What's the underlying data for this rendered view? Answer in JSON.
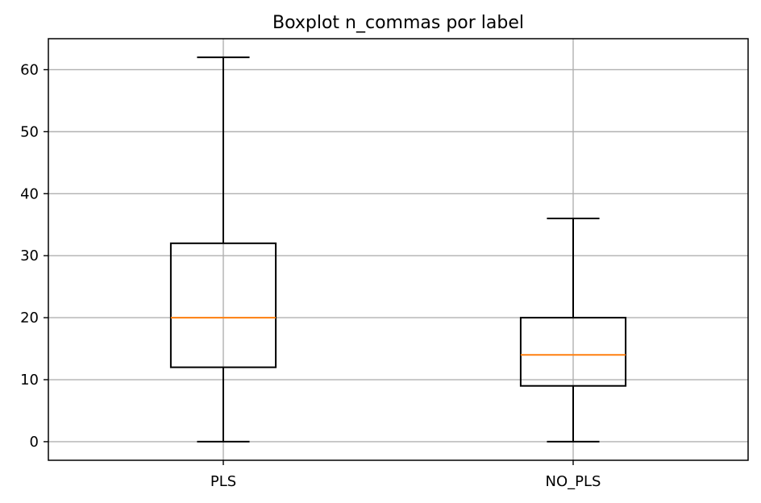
{
  "chart_data": {
    "type": "boxplot",
    "title": "Boxplot n_commas por label",
    "xlabel": "",
    "ylabel": "",
    "categories": [
      "PLS",
      "NO_PLS"
    ],
    "boxes": [
      {
        "category": "PLS",
        "whisker_low": 0,
        "q1": 12,
        "median": 20,
        "q3": 32,
        "whisker_high": 62
      },
      {
        "category": "NO_PLS",
        "whisker_low": 0,
        "q1": 9,
        "median": 14,
        "q3": 20,
        "whisker_high": 36
      }
    ],
    "ylim": [
      -3,
      65
    ],
    "yticks": [
      0,
      10,
      20,
      30,
      40,
      50,
      60
    ],
    "grid": true,
    "colors": {
      "box": "#000000",
      "median": "#ff7f0e",
      "grid": "#b0b0b0"
    }
  }
}
